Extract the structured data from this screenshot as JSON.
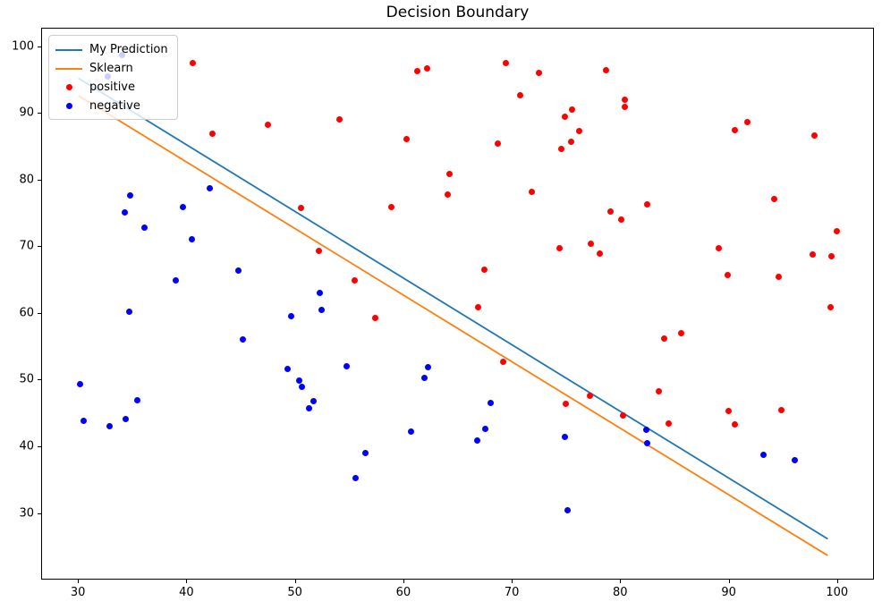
{
  "title": "Decision Boundary",
  "legend": {
    "items": [
      {
        "label": "My Prediction",
        "type": "line",
        "color": "#1f77b4"
      },
      {
        "label": "Sklearn",
        "type": "line",
        "color": "#ff7f0e"
      },
      {
        "label": "positive",
        "type": "marker",
        "color": "#ff0000"
      },
      {
        "label": "negative",
        "type": "marker",
        "color": "#0000ff"
      }
    ]
  },
  "chart_data": {
    "type": "scatter",
    "title": "Decision Boundary",
    "xlabel": "",
    "ylabel": "",
    "xlim": [
      26.6,
      103.4
    ],
    "ylim": [
      20.0,
      102.8
    ],
    "x_ticks": [
      30,
      40,
      50,
      60,
      70,
      80,
      90,
      100
    ],
    "y_ticks": [
      30,
      40,
      50,
      60,
      70,
      80,
      90,
      100
    ],
    "grid": false,
    "legend_position": "upper left",
    "lines": [
      {
        "name": "My Prediction",
        "color": "#1f77b4",
        "width": 1.8,
        "points": [
          [
            30,
            95.3
          ],
          [
            99,
            26.3
          ]
        ]
      },
      {
        "name": "Sklearn",
        "color": "#ff7f0e",
        "width": 1.8,
        "points": [
          [
            30,
            92.7
          ],
          [
            99,
            23.8
          ]
        ]
      }
    ],
    "series": [
      {
        "name": "positive",
        "color": "#ff0000",
        "marker_px": 7,
        "points": [
          [
            40.5,
            97.6
          ],
          [
            42.3,
            87.1
          ],
          [
            47.4,
            88.4
          ],
          [
            50.5,
            75.9
          ],
          [
            52.1,
            69.4
          ],
          [
            54.0,
            89.2
          ],
          [
            55.4,
            65.0
          ],
          [
            57.3,
            59.4
          ],
          [
            58.8,
            76.0
          ],
          [
            60.2,
            86.3
          ],
          [
            61.2,
            96.4
          ],
          [
            62.1,
            96.8
          ],
          [
            64.0,
            77.9
          ],
          [
            64.2,
            81.0
          ],
          [
            66.8,
            61.0
          ],
          [
            67.4,
            66.6
          ],
          [
            68.6,
            85.6
          ],
          [
            69.1,
            52.8
          ],
          [
            69.4,
            97.7
          ],
          [
            70.7,
            92.8
          ],
          [
            71.8,
            78.3
          ],
          [
            72.4,
            96.2
          ],
          [
            74.3,
            69.9
          ],
          [
            74.5,
            84.8
          ],
          [
            74.8,
            89.6
          ],
          [
            74.9,
            46.5
          ],
          [
            75.4,
            85.8
          ],
          [
            75.5,
            90.7
          ],
          [
            76.1,
            87.4
          ],
          [
            77.1,
            47.7
          ],
          [
            77.2,
            70.5
          ],
          [
            78.0,
            69.0
          ],
          [
            78.6,
            96.6
          ],
          [
            79.0,
            75.3
          ],
          [
            80.0,
            74.1
          ],
          [
            80.2,
            44.7
          ],
          [
            80.3,
            92.1
          ],
          [
            80.3,
            91.0
          ],
          [
            82.4,
            76.5
          ],
          [
            83.5,
            48.4
          ],
          [
            84.0,
            56.3
          ],
          [
            84.4,
            43.5
          ],
          [
            85.5,
            57.1
          ],
          [
            89.0,
            69.9
          ],
          [
            89.8,
            65.8
          ],
          [
            89.9,
            45.5
          ],
          [
            90.5,
            87.6
          ],
          [
            90.5,
            43.4
          ],
          [
            91.6,
            88.8
          ],
          [
            94.1,
            77.2
          ],
          [
            94.5,
            65.6
          ],
          [
            94.8,
            45.6
          ],
          [
            97.7,
            68.9
          ],
          [
            97.8,
            86.8
          ],
          [
            99.3,
            61.0
          ],
          [
            99.4,
            68.7
          ],
          [
            99.9,
            72.4
          ]
        ]
      },
      {
        "name": "negative",
        "color": "#0000ff",
        "marker_px": 7,
        "points": [
          [
            30.1,
            49.5
          ],
          [
            30.4,
            43.9
          ],
          [
            32.7,
            95.6
          ],
          [
            32.8,
            43.2
          ],
          [
            34.0,
            98.9
          ],
          [
            34.2,
            75.2
          ],
          [
            34.3,
            44.2
          ],
          [
            34.6,
            60.4
          ],
          [
            34.7,
            77.8
          ],
          [
            35.4,
            47.0
          ],
          [
            36.0,
            73.0
          ],
          [
            38.9,
            65.0
          ],
          [
            39.6,
            76.0
          ],
          [
            40.4,
            71.2
          ],
          [
            42.1,
            78.8
          ],
          [
            44.7,
            66.5
          ],
          [
            45.1,
            56.2
          ],
          [
            49.2,
            51.8
          ],
          [
            49.6,
            59.7
          ],
          [
            50.3,
            50.0
          ],
          [
            50.6,
            49.0
          ],
          [
            51.2,
            45.8
          ],
          [
            51.6,
            46.9
          ],
          [
            52.2,
            63.2
          ],
          [
            52.4,
            60.6
          ],
          [
            54.7,
            52.1
          ],
          [
            55.5,
            35.4
          ],
          [
            56.4,
            39.1
          ],
          [
            60.6,
            42.4
          ],
          [
            61.9,
            50.4
          ],
          [
            62.2,
            52.0
          ],
          [
            66.7,
            41.0
          ],
          [
            67.5,
            42.8
          ],
          [
            68.0,
            46.6
          ],
          [
            74.8,
            41.5
          ],
          [
            75.1,
            30.5
          ],
          [
            82.3,
            42.6
          ],
          [
            82.4,
            40.6
          ],
          [
            93.1,
            38.8
          ],
          [
            96.0,
            38.1
          ]
        ]
      }
    ]
  }
}
